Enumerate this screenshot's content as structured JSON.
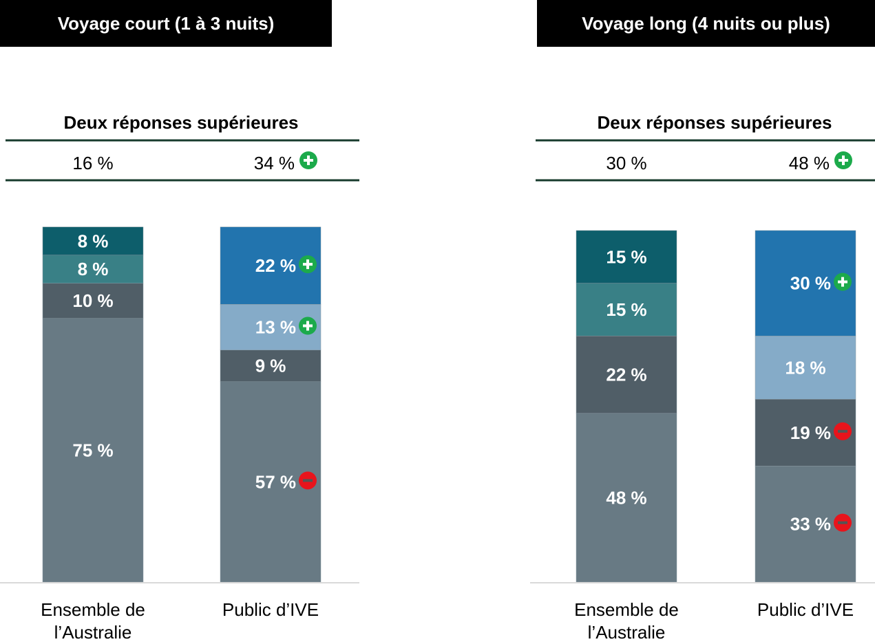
{
  "chart_data": [
    {
      "type": "stacked_bar",
      "title": "Voyage court (1 à 3 nuits)",
      "summary": {
        "label": "Deux réponses supérieures",
        "values": [
          16,
          34
        ],
        "value_labels": [
          "16 %",
          "34 %"
        ],
        "significance": [
          null,
          "higher"
        ]
      },
      "categories": [
        "Ensemble de l’Australie",
        "Public d’IVE"
      ],
      "ylim": [
        0,
        100
      ],
      "series": [
        {
          "values": [
            75,
            57
          ],
          "value_labels": [
            "75 %",
            "57 %"
          ],
          "colors": [
            "#687a84",
            "#687a84"
          ],
          "significance": [
            null,
            "lower"
          ]
        },
        {
          "values": [
            10,
            9
          ],
          "value_labels": [
            "10 %",
            "9 %"
          ],
          "colors": [
            "#505e67",
            "#505e67"
          ],
          "significance": [
            null,
            null
          ]
        },
        {
          "values": [
            8,
            13
          ],
          "value_labels": [
            "8 %",
            "13 %"
          ],
          "colors": [
            "#398086",
            "#85abc8"
          ],
          "significance": [
            null,
            "higher"
          ]
        },
        {
          "values": [
            8,
            22
          ],
          "value_labels": [
            "8 %",
            "22 %"
          ],
          "colors": [
            "#0d5e6b",
            "#2274ae"
          ],
          "significance": [
            null,
            "higher"
          ]
        }
      ]
    },
    {
      "type": "stacked_bar",
      "title": "Voyage long (4 nuits ou plus)",
      "summary": {
        "label": "Deux réponses supérieures",
        "values": [
          30,
          48
        ],
        "value_labels": [
          "30 %",
          "48 %"
        ],
        "significance": [
          null,
          "higher"
        ]
      },
      "categories": [
        "Ensemble de l’Australie",
        "Public d’IVE"
      ],
      "ylim": [
        0,
        100
      ],
      "series": [
        {
          "values": [
            48,
            33
          ],
          "value_labels": [
            "48 %",
            "33 %"
          ],
          "colors": [
            "#687a84",
            "#687a84"
          ],
          "significance": [
            null,
            "lower"
          ]
        },
        {
          "values": [
            22,
            19
          ],
          "value_labels": [
            "22 %",
            "19 %"
          ],
          "colors": [
            "#505e67",
            "#505e67"
          ],
          "significance": [
            null,
            "lower"
          ]
        },
        {
          "values": [
            15,
            18
          ],
          "value_labels": [
            "15 %",
            "18 %"
          ],
          "colors": [
            "#398086",
            "#85abc8"
          ],
          "significance": [
            null,
            null
          ]
        },
        {
          "values": [
            15,
            30
          ],
          "value_labels": [
            "15 %",
            "30 %"
          ],
          "colors": [
            "#0d5e6b",
            "#2274ae"
          ],
          "significance": [
            null,
            "higher"
          ]
        }
      ]
    }
  ]
}
